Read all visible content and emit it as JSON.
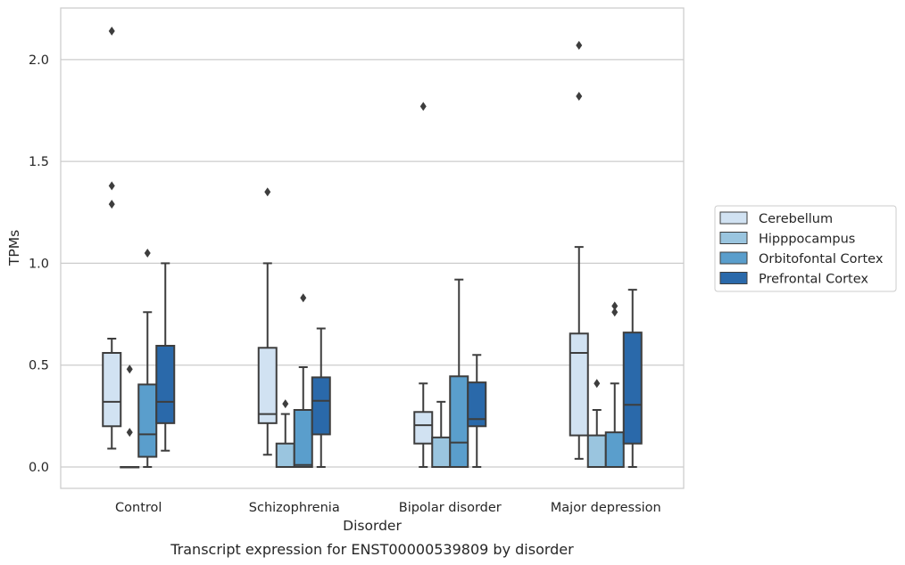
{
  "chart_data": {
    "type": "box",
    "title": "",
    "caption": "Transcript expression for ENST00000539809 by disorder",
    "xlabel": "Disorder",
    "ylabel": "TPMs",
    "ylim": [
      -0.105,
      2.253
    ],
    "yticks": [
      0.0,
      0.5,
      1.0,
      1.5,
      2.0
    ],
    "ytick_labels": [
      "0.0",
      "0.5",
      "1.0",
      "1.5",
      "2.0"
    ],
    "grid": "horizontal",
    "legend_position": "center-right",
    "categories": [
      "Control",
      "Schizophrenia",
      "Bipolar disorder",
      "Major depression"
    ],
    "series": [
      {
        "name": "Cerebellum",
        "color": "#d1e2f2",
        "boxes": [
          {
            "whislo": 0.09,
            "q1": 0.2,
            "med": 0.32,
            "q3": 0.56,
            "whishi": 0.63,
            "fliers": [
              1.29,
              1.38,
              2.14
            ]
          },
          {
            "whislo": 0.06,
            "q1": 0.215,
            "med": 0.26,
            "q3": 0.585,
            "whishi": 1.0,
            "fliers": [
              1.35
            ]
          },
          {
            "whislo": 0.0,
            "q1": 0.115,
            "med": 0.205,
            "q3": 0.27,
            "whishi": 0.41,
            "fliers": [
              1.77
            ]
          },
          {
            "whislo": 0.04,
            "q1": 0.155,
            "med": 0.56,
            "q3": 0.655,
            "whishi": 1.08,
            "fliers": [
              1.82,
              2.07
            ]
          }
        ]
      },
      {
        "name": "Hipppocampus",
        "color": "#9ac5df",
        "boxes": [
          {
            "whislo": 0.0,
            "q1": 0.0,
            "med": 0.0,
            "q3": 0.0,
            "whishi": 0.0,
            "fliers": [
              0.17,
              0.48
            ]
          },
          {
            "whislo": 0.0,
            "q1": 0.0,
            "med": 0.0,
            "q3": 0.115,
            "whishi": 0.26,
            "fliers": [
              0.31
            ]
          },
          {
            "whislo": 0.0,
            "q1": 0.0,
            "med": 0.0,
            "q3": 0.145,
            "whishi": 0.32,
            "fliers": []
          },
          {
            "whislo": 0.0,
            "q1": 0.0,
            "med": 0.0,
            "q3": 0.155,
            "whishi": 0.28,
            "fliers": [
              0.41
            ]
          }
        ]
      },
      {
        "name": "Orbitofontal Cortex",
        "color": "#5a9ecc",
        "boxes": [
          {
            "whislo": 0.0,
            "q1": 0.05,
            "med": 0.16,
            "q3": 0.405,
            "whishi": 0.76,
            "fliers": [
              1.05
            ]
          },
          {
            "whislo": 0.0,
            "q1": 0.0,
            "med": 0.01,
            "q3": 0.28,
            "whishi": 0.49,
            "fliers": [
              0.83
            ]
          },
          {
            "whislo": 0.0,
            "q1": 0.0,
            "med": 0.12,
            "q3": 0.445,
            "whishi": 0.92,
            "fliers": []
          },
          {
            "whislo": 0.0,
            "q1": 0.0,
            "med": 0.0,
            "q3": 0.17,
            "whishi": 0.41,
            "fliers": [
              0.76,
              0.79
            ]
          }
        ]
      },
      {
        "name": "Prefrontal Cortex",
        "color": "#2a69aa",
        "boxes": [
          {
            "whislo": 0.08,
            "q1": 0.215,
            "med": 0.32,
            "q3": 0.595,
            "whishi": 1.0,
            "fliers": []
          },
          {
            "whislo": 0.0,
            "q1": 0.16,
            "med": 0.325,
            "q3": 0.44,
            "whishi": 0.68,
            "fliers": []
          },
          {
            "whislo": 0.0,
            "q1": 0.2,
            "med": 0.235,
            "q3": 0.415,
            "whishi": 0.55,
            "fliers": []
          },
          {
            "whislo": 0.0,
            "q1": 0.115,
            "med": 0.305,
            "q3": 0.66,
            "whishi": 0.87,
            "fliers": []
          }
        ]
      }
    ]
  }
}
